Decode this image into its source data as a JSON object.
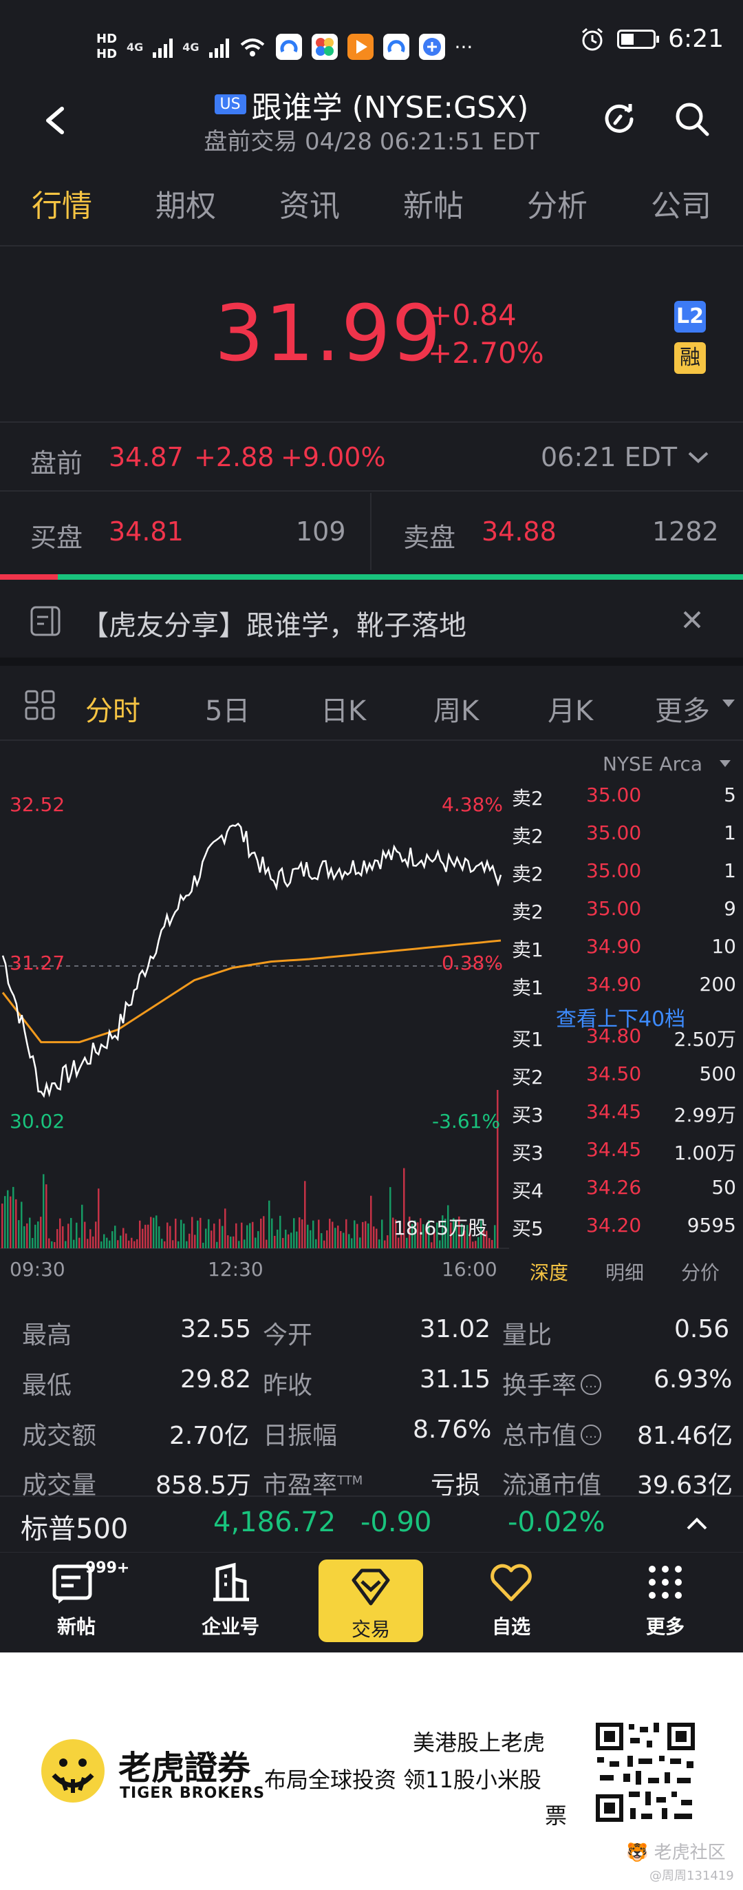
{
  "status_bar": {
    "hd1": "HD",
    "hd2": "HD",
    "net1": "4G",
    "net2": "4G",
    "more": "···",
    "time": "6:21"
  },
  "header": {
    "market_badge": "US",
    "title": "跟谁学 (NYSE:GSX)",
    "subtitle": "盘前交易 04/28 06:21:51 EDT"
  },
  "tabs": [
    "行情",
    "期权",
    "资讯",
    "新帖",
    "分析",
    "公司"
  ],
  "quote": {
    "price": "31.99",
    "change": "+0.84",
    "change_pct": "+2.70%",
    "badge_l2": "L2",
    "badge_margin": "融"
  },
  "premarket": {
    "label": "盘前",
    "price": "34.87",
    "change": "+2.88",
    "change_pct": "+9.00%",
    "time": "06:21 EDT"
  },
  "bid_ask": {
    "bid_label": "买盘",
    "bid_price": "34.81",
    "bid_size": "109",
    "ask_label": "卖盘",
    "ask_price": "34.88",
    "ask_size": "1282"
  },
  "news": {
    "text": "【虎友分享】跟谁学，靴子落地"
  },
  "chart_tabs": [
    "分时",
    "5日",
    "日K",
    "周K",
    "月K",
    "更多"
  ],
  "chart_labels": {
    "exchange": "NYSE Arca",
    "high_price": "32.52",
    "high_pct": "4.38%",
    "mid_price": "31.27",
    "mid_pct": "0.38%",
    "low_price": "30.02",
    "low_pct": "-3.61%",
    "volume": "18.65万股",
    "t_start": "09:30",
    "t_mid": "12:30",
    "t_end": "16:00"
  },
  "chart_data": {
    "type": "line",
    "x": [
      "09:30",
      "10:00",
      "10:30",
      "11:00",
      "11:30",
      "12:00",
      "12:30",
      "13:00",
      "13:30",
      "14:00",
      "14:30",
      "15:00",
      "15:30",
      "16:00"
    ],
    "ylim": [
      30.02,
      32.52
    ],
    "series": [
      {
        "name": "price",
        "values": [
          31.3,
          30.2,
          30.4,
          30.7,
          31.4,
          31.9,
          32.4,
          31.9,
          32.0,
          32.0,
          32.1,
          32.1,
          32.0,
          31.95
        ]
      },
      {
        "name": "avg",
        "values": [
          31.0,
          30.6,
          30.6,
          30.7,
          30.9,
          31.1,
          31.2,
          31.25,
          31.27,
          31.3,
          31.33,
          31.36,
          31.39,
          31.42
        ]
      }
    ]
  },
  "order_book": [
    {
      "side": "卖2",
      "price": "35.00",
      "size": "5"
    },
    {
      "side": "卖2",
      "price": "35.00",
      "size": "1"
    },
    {
      "side": "卖2",
      "price": "35.00",
      "size": "1"
    },
    {
      "side": "卖2",
      "price": "35.00",
      "size": "9"
    },
    {
      "side": "卖1",
      "price": "34.90",
      "size": "10"
    },
    {
      "side": "卖1",
      "price": "34.90",
      "size": "200"
    },
    {
      "side": "买1",
      "price": "34.80",
      "size": "2.50万"
    },
    {
      "side": "买2",
      "price": "34.50",
      "size": "500"
    },
    {
      "side": "买3",
      "price": "34.45",
      "size": "2.99万"
    },
    {
      "side": "买3",
      "price": "34.45",
      "size": "1.00万"
    },
    {
      "side": "买4",
      "price": "34.26",
      "size": "50"
    },
    {
      "side": "买5",
      "price": "34.20",
      "size": "9595"
    }
  ],
  "order_book_link": "查看上下40档",
  "order_book_tabs": [
    "深度",
    "明细",
    "分价"
  ],
  "stats": [
    {
      "label": "最高",
      "value": "32.55"
    },
    {
      "label": "今开",
      "value": "31.02"
    },
    {
      "label": "量比",
      "value": "0.56"
    },
    {
      "label": "最低",
      "value": "29.82"
    },
    {
      "label": "昨收",
      "value": "31.15"
    },
    {
      "label": "换手率",
      "value": "6.93%"
    },
    {
      "label": "成交额",
      "value": "2.70亿"
    },
    {
      "label": "日振幅",
      "value": "8.76%"
    },
    {
      "label": "总市值",
      "value": "81.46亿"
    },
    {
      "label": "成交量",
      "value": "858.5万"
    },
    {
      "label": "市盈率",
      "sup": "TTM",
      "value": "亏损"
    },
    {
      "label": "流通市值",
      "value": "39.63亿"
    }
  ],
  "index_bar": {
    "name": "标普500",
    "value": "4,186.72",
    "change": "-0.90",
    "change_pct": "-0.02%"
  },
  "bottom_nav": {
    "posts": "新帖",
    "posts_badge": "999+",
    "company": "企业号",
    "trade": "交易",
    "watchlist": "自选",
    "more": "更多"
  },
  "ad": {
    "brand_cn": "老虎證券",
    "brand_en": "TIGER BROKERS",
    "line1": "美港股上老虎",
    "line2": "布局全球投资 领11股小米股",
    "line3": "票",
    "watermark": "老虎社区",
    "user": "@周周131419"
  },
  "colors": {
    "up": "#f0344b",
    "down": "#19c37d",
    "accent": "#f6c443",
    "avg_line": "#f29a1d",
    "bg": "#1b1c21"
  }
}
